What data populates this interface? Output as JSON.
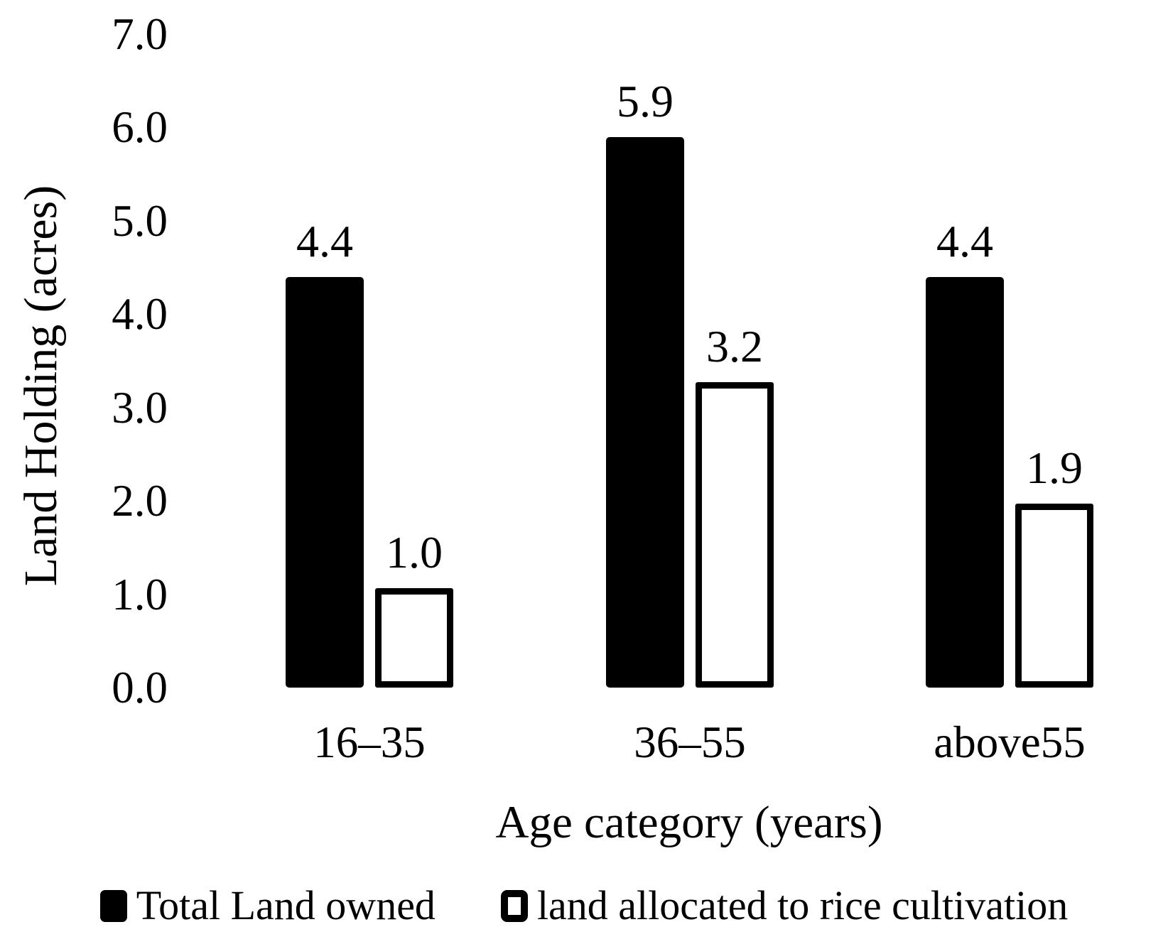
{
  "chart_data": {
    "type": "bar",
    "title": "",
    "xlabel": "Age category (years)",
    "ylabel": "Land Holding (acres)",
    "categories": [
      "16–35",
      "36–55",
      "above55"
    ],
    "series": [
      {
        "name": "Total Land owned",
        "values": [
          4.4,
          5.9,
          4.4
        ],
        "style": "filled",
        "fill": "#000000"
      },
      {
        "name": "land allocated to rice cultivation",
        "values": [
          1.0,
          3.2,
          1.9
        ],
        "style": "outlined",
        "fill": "#ffffff",
        "stroke": "#000000"
      }
    ],
    "data_labels": {
      "shown": true,
      "format": "one_decimal",
      "values": [
        [
          "4.4",
          "5.9",
          "4.4"
        ],
        [
          "1.0",
          "3.2",
          "1.9"
        ]
      ]
    },
    "ylim": [
      0.0,
      7.0
    ],
    "yticks": [
      "0.0",
      "1.0",
      "2.0",
      "3.0",
      "4.0",
      "5.0",
      "6.0",
      "7.0"
    ],
    "grid": false,
    "axis_lines": false,
    "legend_position": "bottom",
    "colors": {
      "bar_fill": "#000000",
      "bar_outline": "#000000",
      "background": "#ffffff",
      "text": "#000000"
    }
  }
}
